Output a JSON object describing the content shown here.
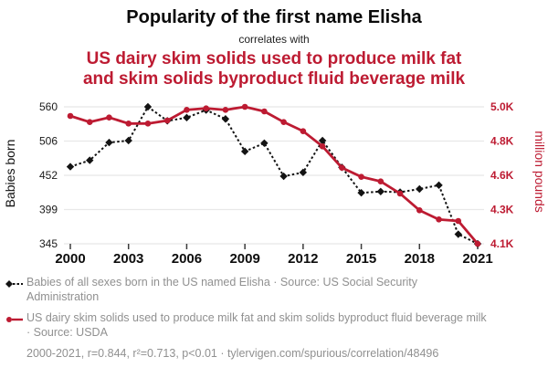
{
  "header": {
    "title": "Popularity of the first name Elisha",
    "connector": "correlates with",
    "subtitle_line1": "US dairy skim solids used to produce milk fat",
    "subtitle_line2": "and skim solids byproduct fluid beverage milk"
  },
  "colors": {
    "red": "#bd1b32",
    "black": "#131313",
    "legend_gray": "#909090",
    "gridline": "#e8e8e8",
    "axis_line": "#cfcfcf",
    "tick_mark": "#3a3a3a",
    "left_tick_text": "#1a1a1a",
    "x_tick_text": "#0d0d0d"
  },
  "chart_data": {
    "type": "line",
    "x": [
      2000,
      2001,
      2002,
      2003,
      2004,
      2005,
      2006,
      2007,
      2008,
      2009,
      2010,
      2011,
      2012,
      2013,
      2014,
      2015,
      2016,
      2017,
      2018,
      2019,
      2020,
      2021
    ],
    "series": [
      {
        "name": "Babies of all sexes born in the US named Elisha",
        "axis": "left",
        "color": "#131313",
        "marker": "diamond",
        "line_style": "dashed",
        "values": [
          466,
          476,
          504,
          507,
          560,
          538,
          543,
          555,
          541,
          490,
          503,
          451,
          457,
          507,
          465,
          425,
          427,
          426,
          431,
          437,
          360,
          345
        ]
      },
      {
        "name": "US dairy skim solids used to produce milk fat and skim solids byproduct fluid beverage milk",
        "axis": "right",
        "color": "#bd1b32",
        "marker": "circle",
        "line_style": "solid",
        "values": [
          4.94,
          4.9,
          4.93,
          4.89,
          4.89,
          4.91,
          4.98,
          4.99,
          4.98,
          5.0,
          4.97,
          4.9,
          4.84,
          4.74,
          4.6,
          4.54,
          4.51,
          4.43,
          4.32,
          4.26,
          4.25,
          4.1
        ]
      }
    ],
    "left_axis": {
      "label": "Babies born",
      "tick_labels": [
        "560",
        "506",
        "452",
        "399",
        "345"
      ],
      "range": [
        345,
        560
      ]
    },
    "right_axis": {
      "label": "million pounds",
      "tick_labels": [
        "5.0K",
        "4.8K",
        "4.6K",
        "4.3K",
        "4.1K"
      ],
      "range": [
        4.1,
        5.0
      ]
    },
    "x_axis": {
      "tick_years": [
        2000,
        2003,
        2006,
        2009,
        2012,
        2015,
        2018,
        2021
      ],
      "range": [
        2000,
        2021
      ]
    },
    "grid": "horizontal"
  },
  "legend": {
    "items": [
      {
        "label": "Babies of all sexes born in the US named Elisha · Source: US Social Security Administration",
        "marker": "black-dashed"
      },
      {
        "label": "US dairy skim solids used to produce milk fat and skim solids byproduct fluid beverage milk · Source: USDA",
        "marker": "red-solid"
      }
    ],
    "footnote": "2000-2021, r=0.844, r²=0.713, p<0.01 · tylervigen.com/spurious/correlation/48496"
  }
}
